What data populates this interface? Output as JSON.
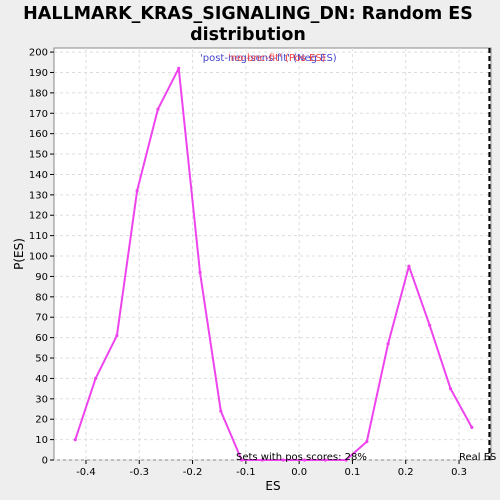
{
  "chart_data": {
    "type": "line",
    "title_line1": "HALLMARK_KRAS_SIGNALING_DN: Random ES",
    "title_line2": "distribution",
    "xlabel": "ES",
    "ylabel": "P(ES)",
    "xlim": [
      -0.46,
      0.36
    ],
    "ylim": [
      0,
      202
    ],
    "xticks": [
      -0.4,
      -0.3,
      -0.2,
      -0.1,
      0.0,
      0.1,
      0.2,
      0.3
    ],
    "xtick_labels": [
      "-0.4",
      "-0.3",
      "-0.2",
      "-0.1",
      "0.0",
      "0.1",
      "0.2",
      "0.3"
    ],
    "yticks": [
      0,
      10,
      20,
      30,
      40,
      50,
      60,
      70,
      80,
      90,
      100,
      110,
      120,
      130,
      140,
      150,
      160,
      170,
      180,
      190,
      200
    ],
    "grid": true,
    "series": [
      {
        "color": "#ee44ee",
        "x": [
          -0.42,
          -0.382,
          -0.342,
          -0.304,
          -0.265,
          -0.226,
          -0.186,
          -0.147,
          -0.108,
          -0.069,
          -0.03,
          0.01,
          0.049,
          0.088,
          0.127,
          0.167,
          0.206,
          0.245,
          0.284,
          0.324
        ],
        "y": [
          10,
          40,
          61,
          132,
          172,
          192,
          92,
          24,
          0,
          0,
          0,
          0,
          0,
          0,
          9,
          57,
          95,
          66,
          35,
          16
        ]
      }
    ],
    "real_es_line": {
      "x": 0.357,
      "color": "#000000",
      "style": "dashed"
    },
    "legend": {
      "position": "top-center",
      "entries": [
        {
          "label": "'post-neg-sens-fit' (Neg ES)",
          "color": "#4444cc"
        },
        {
          "label": "'no-bnc-fit' (Pos ES)",
          "color": "#ee4444"
        }
      ]
    },
    "annotations": {
      "pos_scores": "Sets with pos scores: 28%",
      "real_es": "Real ES"
    }
  }
}
